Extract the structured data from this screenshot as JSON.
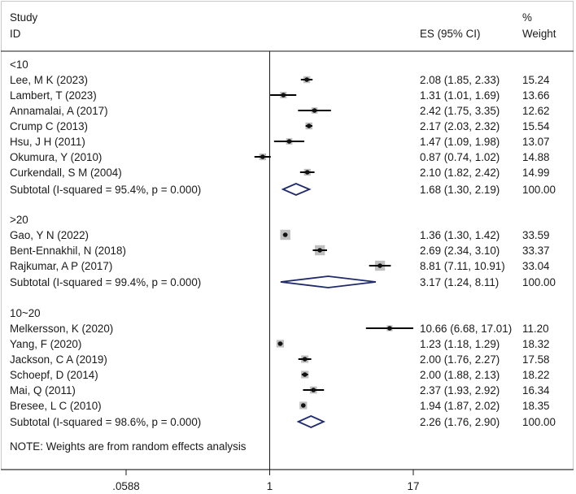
{
  "header": {
    "study_label": "Study",
    "id_label": "ID",
    "es_label": "ES (95% CI)",
    "pct_label": "%",
    "weight_label": "Weight"
  },
  "note": "NOTE: Weights are from random effects analysis",
  "colors": {
    "text": "#1a1a1a",
    "study_box": "#bfbfbf",
    "point": "#111111",
    "diamond": "#1f2a6b",
    "axis": "#1a1a1a",
    "frame": "#c8c8c8"
  },
  "chart_data": {
    "type": "forest",
    "scale": "log",
    "x_ticks": [
      {
        "value": 0.0588,
        "label": ".0588"
      },
      {
        "value": 1,
        "label": "1"
      },
      {
        "value": 17,
        "label": "17"
      }
    ],
    "null_line": 1,
    "groups": [
      {
        "label": "<10",
        "studies": [
          {
            "name": "Lee, M K (2023)",
            "es": 2.08,
            "lo": 1.85,
            "hi": 2.33,
            "es_text": "2.08 (1.85, 2.33)",
            "weight": 15.24,
            "weight_text": "15.24"
          },
          {
            "name": "Lambert, T (2023)",
            "es": 1.31,
            "lo": 1.01,
            "hi": 1.69,
            "es_text": "1.31 (1.01, 1.69)",
            "weight": 13.66,
            "weight_text": "13.66"
          },
          {
            "name": "Annamalai, A (2017)",
            "es": 2.42,
            "lo": 1.75,
            "hi": 3.35,
            "es_text": "2.42 (1.75, 3.35)",
            "weight": 12.62,
            "weight_text": "12.62"
          },
          {
            "name": "Crump C (2013)",
            "es": 2.17,
            "lo": 2.03,
            "hi": 2.32,
            "es_text": "2.17 (2.03, 2.32)",
            "weight": 15.54,
            "weight_text": "15.54"
          },
          {
            "name": "Hsu, J H (2011)",
            "es": 1.47,
            "lo": 1.09,
            "hi": 1.98,
            "es_text": "1.47 (1.09, 1.98)",
            "weight": 13.07,
            "weight_text": "13.07"
          },
          {
            "name": "Okumura, Y (2010)",
            "es": 0.87,
            "lo": 0.74,
            "hi": 1.02,
            "es_text": "0.87 (0.74, 1.02)",
            "weight": 14.88,
            "weight_text": "14.88"
          },
          {
            "name": "Curkendall, S M (2004)",
            "es": 2.1,
            "lo": 1.82,
            "hi": 2.42,
            "es_text": "2.10 (1.82, 2.42)",
            "weight": 14.99,
            "weight_text": "14.99"
          }
        ],
        "subtotal": {
          "label": "Subtotal  (I-squared = 95.4%, p = 0.000)",
          "es": 1.68,
          "lo": 1.3,
          "hi": 2.19,
          "es_text": "1.68 (1.30, 2.19)",
          "weight_text": "100.00"
        }
      },
      {
        "label": ">20",
        "studies": [
          {
            "name": "Gao, Y N (2022)",
            "es": 1.36,
            "lo": 1.3,
            "hi": 1.42,
            "es_text": "1.36 (1.30, 1.42)",
            "weight": 33.59,
            "weight_text": "33.59"
          },
          {
            "name": "Bent-Ennakhil, N (2018)",
            "es": 2.69,
            "lo": 2.34,
            "hi": 3.1,
            "es_text": "2.69 (2.34, 3.10)",
            "weight": 33.37,
            "weight_text": "33.37"
          },
          {
            "name": "Rajkumar, A P (2017)",
            "es": 8.81,
            "lo": 7.11,
            "hi": 10.91,
            "es_text": "8.81 (7.11, 10.91)",
            "weight": 33.04,
            "weight_text": "33.04"
          }
        ],
        "subtotal": {
          "label": "Subtotal  (I-squared = 99.4%, p = 0.000)",
          "es": 3.17,
          "lo": 1.24,
          "hi": 8.11,
          "es_text": "3.17 (1.24, 8.11)",
          "weight_text": "100.00"
        }
      },
      {
        "label": "10~20",
        "studies": [
          {
            "name": "Melkersson, K (2020)",
            "es": 10.66,
            "lo": 6.68,
            "hi": 17.01,
            "es_text": "10.66 (6.68, 17.01)",
            "weight": 11.2,
            "weight_text": "11.20"
          },
          {
            "name": "Yang, F (2020)",
            "es": 1.23,
            "lo": 1.18,
            "hi": 1.29,
            "es_text": "1.23 (1.18, 1.29)",
            "weight": 18.32,
            "weight_text": "18.32"
          },
          {
            "name": "Jackson, C A  (2019)",
            "es": 2.0,
            "lo": 1.76,
            "hi": 2.27,
            "es_text": "2.00 (1.76, 2.27)",
            "weight": 17.58,
            "weight_text": "17.58"
          },
          {
            "name": "Schoepf, D (2014)",
            "es": 2.0,
            "lo": 1.88,
            "hi": 2.13,
            "es_text": "2.00 (1.88, 2.13)",
            "weight": 18.22,
            "weight_text": "18.22"
          },
          {
            "name": "Mai, Q (2011)",
            "es": 2.37,
            "lo": 1.93,
            "hi": 2.92,
            "es_text": "2.37 (1.93, 2.92)",
            "weight": 16.34,
            "weight_text": "16.34"
          },
          {
            "name": "Bresee, L C (2010)",
            "es": 1.94,
            "lo": 1.87,
            "hi": 2.02,
            "es_text": "1.94 (1.87, 2.02)",
            "weight": 18.35,
            "weight_text": "18.35"
          }
        ],
        "subtotal": {
          "label": "Subtotal  (I-squared = 98.6%, p = 0.000)",
          "es": 2.26,
          "lo": 1.76,
          "hi": 2.9,
          "es_text": "2.26 (1.76, 2.90)",
          "weight_text": "100.00"
        }
      }
    ]
  }
}
